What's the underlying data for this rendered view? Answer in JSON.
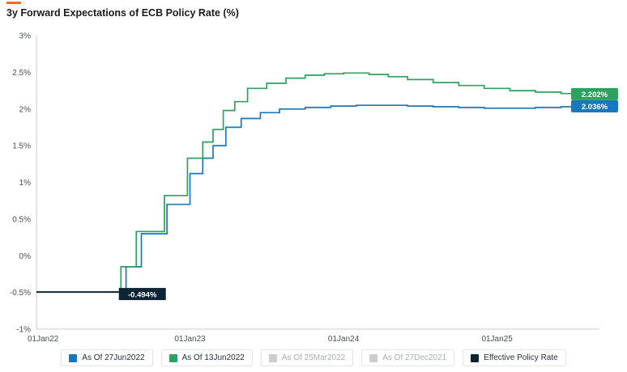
{
  "title": "3y Forward Expectations of ECB Policy Rate (%)",
  "colors": {
    "accent": "#f26b2e",
    "axis": "#c9ccd0",
    "tick_text": "#4a4f55",
    "muted_legend_text": "#a8aeb4"
  },
  "chart_data": {
    "type": "line",
    "title": "3y Forward Expectations of ECB Policy Rate (%)",
    "x_unit": "months from 01Jan2022",
    "x_range": [
      0,
      44
    ],
    "x_ticks": [
      {
        "month": 0,
        "label": "01Jan22"
      },
      {
        "month": 12,
        "label": "01Jan23"
      },
      {
        "month": 24,
        "label": "01Jan24"
      },
      {
        "month": 36,
        "label": "01Jan25"
      }
    ],
    "y_range": [
      -1,
      3
    ],
    "y_ticks": [
      {
        "value": 3,
        "label": "3%"
      },
      {
        "value": 2.5,
        "label": "2.5%"
      },
      {
        "value": 2,
        "label": "2%"
      },
      {
        "value": 1.5,
        "label": "1.5%"
      },
      {
        "value": 1,
        "label": "1%"
      },
      {
        "value": 0.5,
        "label": "0.5%"
      },
      {
        "value": 0,
        "label": "0%"
      },
      {
        "value": -0.5,
        "label": "-0.5%"
      },
      {
        "value": -1,
        "label": "-1%"
      }
    ],
    "grid": false,
    "legend_position": "bottom",
    "series": [
      {
        "name": "As Of 27Jun2022",
        "color": "#1778bd",
        "visible": true,
        "step": true,
        "end_label": "2.036%",
        "points": [
          [
            6.4,
            -0.494
          ],
          [
            7.0,
            -0.15
          ],
          [
            8.2,
            0.3
          ],
          [
            10.2,
            0.7
          ],
          [
            12.0,
            1.12
          ],
          [
            13.0,
            1.33
          ],
          [
            13.8,
            1.5
          ],
          [
            14.8,
            1.75
          ],
          [
            16.0,
            1.87
          ],
          [
            17.5,
            1.95
          ],
          [
            19.0,
            2.0
          ],
          [
            21.0,
            2.02
          ],
          [
            23.0,
            2.04
          ],
          [
            25.0,
            2.05
          ],
          [
            27.0,
            2.05
          ],
          [
            29.0,
            2.04
          ],
          [
            31.0,
            2.03
          ],
          [
            33.0,
            2.02
          ],
          [
            35.0,
            2.01
          ],
          [
            37.0,
            2.01
          ],
          [
            39.0,
            2.02
          ],
          [
            41.0,
            2.03
          ],
          [
            43.0,
            2.035
          ],
          [
            44.0,
            2.036
          ]
        ]
      },
      {
        "name": "As Of 13Jun2022",
        "color": "#2ea15f",
        "visible": true,
        "step": true,
        "end_label": "2.202%",
        "points": [
          [
            5.5,
            -0.494
          ],
          [
            6.6,
            -0.15
          ],
          [
            7.8,
            0.33
          ],
          [
            10.0,
            0.82
          ],
          [
            11.8,
            1.33
          ],
          [
            13.0,
            1.55
          ],
          [
            13.8,
            1.72
          ],
          [
            14.6,
            1.98
          ],
          [
            15.5,
            2.1
          ],
          [
            16.5,
            2.28
          ],
          [
            18.0,
            2.35
          ],
          [
            19.5,
            2.42
          ],
          [
            21.0,
            2.46
          ],
          [
            22.5,
            2.48
          ],
          [
            24.0,
            2.49
          ],
          [
            26.0,
            2.47
          ],
          [
            27.5,
            2.44
          ],
          [
            29.0,
            2.4
          ],
          [
            31.0,
            2.36
          ],
          [
            33.0,
            2.32
          ],
          [
            35.0,
            2.28
          ],
          [
            37.0,
            2.25
          ],
          [
            39.0,
            2.23
          ],
          [
            41.0,
            2.21
          ],
          [
            43.0,
            2.205
          ],
          [
            44.0,
            2.202
          ]
        ]
      },
      {
        "name": "As Of 25Mar2022",
        "color": "#c9cdd1",
        "visible": false,
        "step": true,
        "points": []
      },
      {
        "name": "As Of 27Dec2021",
        "color": "#c9cdd1",
        "visible": false,
        "step": true,
        "points": []
      },
      {
        "name": "Effective Policy Rate",
        "color": "#0d2433",
        "visible": true,
        "step": false,
        "value_label": "-0.494%",
        "points": [
          [
            0,
            -0.494
          ],
          [
            6.44,
            -0.494
          ]
        ]
      }
    ]
  }
}
